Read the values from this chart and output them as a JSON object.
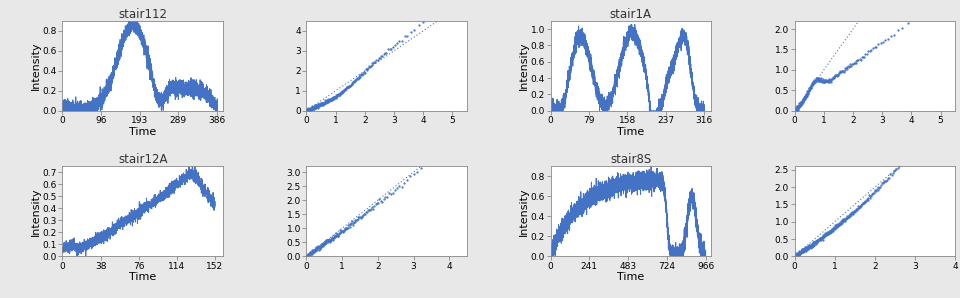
{
  "panels": [
    {
      "title": "stair112",
      "intensity_xlabel": "Time",
      "intensity_ylabel": "Intensity",
      "intensity_xticks": [
        0,
        96,
        193,
        289,
        386
      ],
      "intensity_xlim": [
        0,
        400
      ],
      "intensity_ylim": [
        0,
        0.9
      ],
      "intensity_yticks": [
        0.0,
        0.2,
        0.4,
        0.6,
        0.8
      ],
      "qq_xlim": [
        0,
        5.5
      ],
      "qq_ylim": [
        0,
        4.5
      ],
      "qq_xticks": [
        0,
        1,
        2,
        3,
        4,
        5
      ],
      "qq_yticks": [
        0,
        1,
        2,
        3,
        4
      ]
    },
    {
      "title": "stair1A",
      "intensity_xlabel": "Time",
      "intensity_ylabel": "Intensity",
      "intensity_xticks": [
        0,
        79,
        158,
        237,
        316
      ],
      "intensity_xlim": [
        0,
        330
      ],
      "intensity_ylim": [
        0,
        1.1
      ],
      "intensity_yticks": [
        0.0,
        0.2,
        0.4,
        0.6,
        0.8,
        1.0
      ],
      "qq_xlim": [
        0,
        5.5
      ],
      "qq_ylim": [
        0,
        2.2
      ],
      "qq_xticks": [
        0,
        1,
        2,
        3,
        4,
        5
      ],
      "qq_yticks": [
        0.0,
        0.5,
        1.0,
        1.5,
        2.0
      ]
    },
    {
      "title": "stair12A",
      "intensity_xlabel": "Time",
      "intensity_ylabel": "Intensity",
      "intensity_xticks": [
        0,
        38,
        76,
        114,
        152
      ],
      "intensity_xlim": [
        0,
        160
      ],
      "intensity_ylim": [
        0,
        0.75
      ],
      "intensity_yticks": [
        0.0,
        0.1,
        0.2,
        0.3,
        0.4,
        0.5,
        0.6,
        0.7
      ],
      "qq_xlim": [
        0,
        4.5
      ],
      "qq_ylim": [
        0,
        3.2
      ],
      "qq_xticks": [
        0,
        1,
        2,
        3,
        4
      ],
      "qq_yticks": [
        0.0,
        0.5,
        1.0,
        1.5,
        2.0,
        2.5,
        3.0
      ]
    },
    {
      "title": "stair8S",
      "intensity_xlabel": "Time",
      "intensity_ylabel": "Intensity",
      "intensity_xticks": [
        0,
        241,
        483,
        724,
        966
      ],
      "intensity_xlim": [
        0,
        1000
      ],
      "intensity_ylim": [
        0,
        0.9
      ],
      "intensity_yticks": [
        0.0,
        0.2,
        0.4,
        0.6,
        0.8
      ],
      "qq_xlim": [
        0,
        4.0
      ],
      "qq_ylim": [
        0,
        2.6
      ],
      "qq_xticks": [
        0,
        1,
        2,
        3,
        4
      ],
      "qq_yticks": [
        0.0,
        0.5,
        1.0,
        1.5,
        2.0,
        2.5
      ]
    }
  ],
  "line_color": "#4472C4",
  "dot_color": "#4472C4",
  "diag_color": "#4472C4",
  "figure_bg": "#E8E8E8",
  "panel_bg": "#FFFFFF",
  "font_family": "DejaVu Sans"
}
